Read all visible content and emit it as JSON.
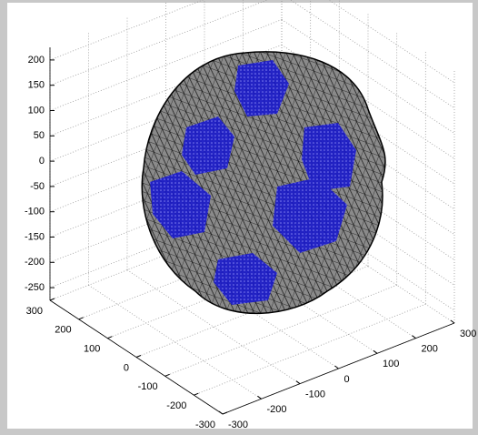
{
  "chart_data": {
    "type": "mesh3d",
    "xlim": [
      -300,
      300
    ],
    "xticks": [
      -300,
      -200,
      -100,
      0,
      100,
      200,
      300
    ],
    "ylim": [
      -300,
      300
    ],
    "yticks": [
      -300,
      -200,
      -100,
      0,
      100,
      200,
      300
    ],
    "zlim": [
      -275,
      225
    ],
    "zticks": [
      -250,
      -200,
      -150,
      -100,
      -50,
      0,
      50,
      100,
      150,
      200
    ],
    "grid": true,
    "mesh_color": "#000000",
    "marker_color": "#1a1acc"
  }
}
